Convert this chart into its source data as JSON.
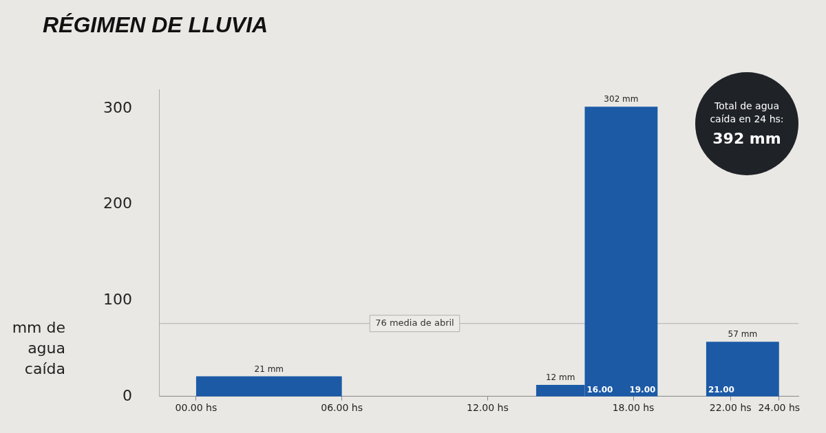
{
  "chart_data": {
    "type": "histogram",
    "title": "RÉGIMEN DE LLUVIA",
    "ylabel": "mm de agua caída",
    "bins": [
      0,
      6,
      14,
      16,
      19,
      21,
      24
    ],
    "values": [
      21,
      null,
      12,
      302,
      null,
      57
    ],
    "value_labels": [
      "21 mm",
      null,
      "12 mm",
      "302 mm",
      null,
      "57 mm"
    ],
    "color": "#1c5aa6",
    "xlim": [
      -1.5,
      24.8
    ],
    "xticks": [
      {
        "value": 0,
        "label": "00.00 hs"
      },
      {
        "value": 6,
        "label": "06.00 hs"
      },
      {
        "value": 12,
        "label": "12.00 hs"
      },
      {
        "value": 18,
        "label": "18.00 hs"
      },
      {
        "value": 22,
        "label": "22.00 hs"
      },
      {
        "value": 24,
        "label": "24.00 hs"
      }
    ],
    "ylim": [
      0,
      320
    ],
    "yticks": [
      0,
      100,
      200,
      300
    ],
    "grid": false,
    "ref_lines": [
      {
        "axis": "y",
        "value": 76,
        "label": "76 media de abril",
        "color": "#b0b0b0"
      }
    ],
    "annotations": [
      {
        "text": "16.00",
        "x": 16,
        "y": 0
      },
      {
        "text": "19.00",
        "x": 19,
        "y": 0
      },
      {
        "text": "21.00",
        "x": 21,
        "y": 0
      },
      "Total de agua caída en 24 hs:",
      "392 mm"
    ]
  }
}
